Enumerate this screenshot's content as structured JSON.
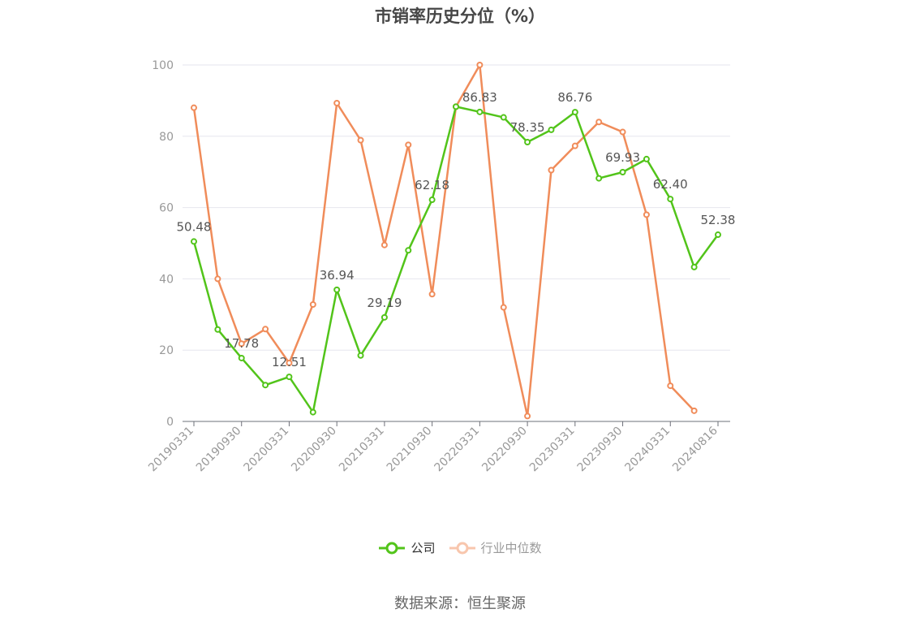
{
  "chart_data": {
    "type": "line",
    "title": "市销率历史分位（%）",
    "xlabel": "",
    "ylabel": "",
    "ylim": [
      0,
      100
    ],
    "y_ticks": [
      0,
      20,
      40,
      60,
      80,
      100
    ],
    "grid": true,
    "legend_position": "bottom-center",
    "x": [
      "20190331",
      "20190630",
      "20190930",
      "20191231",
      "20200331",
      "20200630",
      "20200930",
      "20201231",
      "20210331",
      "20210630",
      "20210930",
      "20211231",
      "20220331",
      "20220630",
      "20220930",
      "20221231",
      "20230331",
      "20230630",
      "20230930",
      "20231231",
      "20240331",
      "20240630",
      "20240816"
    ],
    "x_tick_labels": [
      "20190331",
      "20190930",
      "20200331",
      "20200930",
      "20210331",
      "20210930",
      "20220331",
      "20220930",
      "20230331",
      "20230930",
      "20240331",
      "20240816"
    ],
    "series": [
      {
        "name": "公司",
        "color": "#52c41a",
        "values": [
          50.48,
          25.8,
          17.78,
          10.2,
          12.51,
          2.6,
          36.94,
          18.5,
          29.19,
          48.0,
          62.18,
          88.3,
          86.83,
          85.3,
          78.35,
          81.8,
          86.76,
          68.2,
          69.93,
          73.6,
          62.4,
          43.3,
          52.38
        ],
        "labels": [
          "50.48",
          "",
          "17.78",
          "",
          "12.51",
          "",
          "36.94",
          "",
          "29.19",
          "",
          "62.18",
          "",
          "86.83",
          "",
          "78.35",
          "",
          "86.76",
          "",
          "69.93",
          "",
          "62.40",
          "",
          "52.38"
        ]
      },
      {
        "name": "行业中位数",
        "color": "#f08c5a",
        "values": [
          88.0,
          40.0,
          21.8,
          25.9,
          16.4,
          32.8,
          89.3,
          78.9,
          49.5,
          77.6,
          35.7,
          88.3,
          100.0,
          32.0,
          1.5,
          70.5,
          77.3,
          84.0,
          81.2,
          58.0,
          10.0,
          3.0,
          null
        ]
      }
    ]
  },
  "source_text": "数据来源：恒生聚源"
}
